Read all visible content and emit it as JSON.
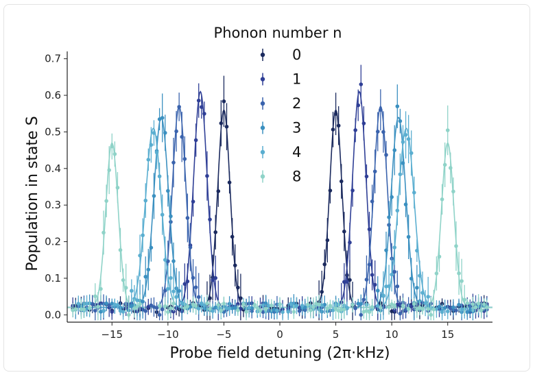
{
  "chart_data": {
    "type": "scatter",
    "title": "",
    "xlabel": "Probe field detuning (2π·kHz)",
    "ylabel": "Population in state S",
    "xlim": [
      -19,
      19
    ],
    "ylim": [
      -0.02,
      0.72
    ],
    "xticks": [
      -15,
      -10,
      -5,
      0,
      5,
      10,
      15
    ],
    "xtick_labels": [
      "−15",
      "−10",
      "−5",
      "0",
      "5",
      "10",
      "15"
    ],
    "yticks": [
      0.0,
      0.1,
      0.2,
      0.3,
      0.4,
      0.5,
      0.6,
      0.7
    ],
    "ytick_labels": [
      "0.0",
      "0.1",
      "0.2",
      "0.3",
      "0.4",
      "0.5",
      "0.6",
      "0.7"
    ],
    "grid": false,
    "legend": {
      "title": "Phonon number n",
      "placement": "top-center"
    },
    "series": [
      {
        "name": "0",
        "color": "#1b2a5e",
        "centers": [
          -5.0,
          5.0
        ],
        "amplitude": 0.54,
        "width": 0.55,
        "baseline": 0.02
      },
      {
        "name": "1",
        "color": "#2f3f96",
        "centers": [
          -7.1,
          7.1
        ],
        "amplitude": 0.59,
        "width": 0.6,
        "baseline": 0.02
      },
      {
        "name": "2",
        "color": "#3a63ad",
        "centers": [
          -9.0,
          9.0
        ],
        "amplitude": 0.55,
        "width": 0.6,
        "baseline": 0.02
      },
      {
        "name": "3",
        "color": "#3b90c0",
        "centers": [
          -10.6,
          10.6
        ],
        "amplitude": 0.52,
        "width": 0.65,
        "baseline": 0.02
      },
      {
        "name": "4",
        "color": "#5aaed0",
        "centers": [
          -11.3,
          11.3
        ],
        "amplitude": 0.49,
        "width": 0.7,
        "baseline": 0.02
      },
      {
        "name": "8",
        "color": "#8fd3c8",
        "centers": [
          -15.0,
          15.0
        ],
        "amplitude": 0.45,
        "width": 0.55,
        "baseline": 0.02
      }
    ]
  }
}
